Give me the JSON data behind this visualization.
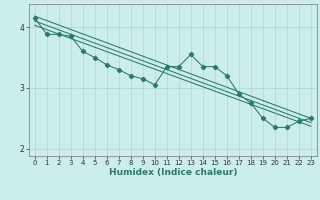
{
  "xlabel": "Humidex (Indice chaleur)",
  "x_values": [
    0,
    1,
    2,
    3,
    4,
    5,
    6,
    7,
    8,
    9,
    10,
    11,
    12,
    13,
    14,
    15,
    16,
    17,
    18,
    19,
    20,
    21,
    22,
    23
  ],
  "line_main": [
    4.15,
    3.88,
    3.88,
    3.85,
    3.6,
    3.5,
    3.38,
    3.3,
    3.2,
    3.15,
    3.05,
    3.35,
    3.35,
    3.55,
    3.35,
    3.35,
    3.2,
    2.9,
    2.75,
    2.5,
    2.35,
    2.35,
    2.45,
    2.5
  ],
  "line_upper": [
    [
      0,
      4.18
    ],
    [
      23,
      2.5
    ]
  ],
  "line_mid1": [
    [
      0,
      4.1
    ],
    [
      23,
      2.43
    ]
  ],
  "line_mid2": [
    [
      0,
      4.03
    ],
    [
      23,
      2.37
    ]
  ],
  "line_color": "#2a7a6a",
  "marker": "D",
  "markersize": 2.2,
  "bg_color": "#cceee8",
  "grid_color": "#aad8d0",
  "ylim": [
    1.88,
    4.38
  ],
  "xlim": [
    -0.5,
    23.5
  ],
  "yticks": [
    2,
    3,
    4
  ],
  "xticks": [
    0,
    1,
    2,
    3,
    4,
    5,
    6,
    7,
    8,
    9,
    10,
    11,
    12,
    13,
    14,
    15,
    16,
    17,
    18,
    19,
    20,
    21,
    22,
    23
  ]
}
